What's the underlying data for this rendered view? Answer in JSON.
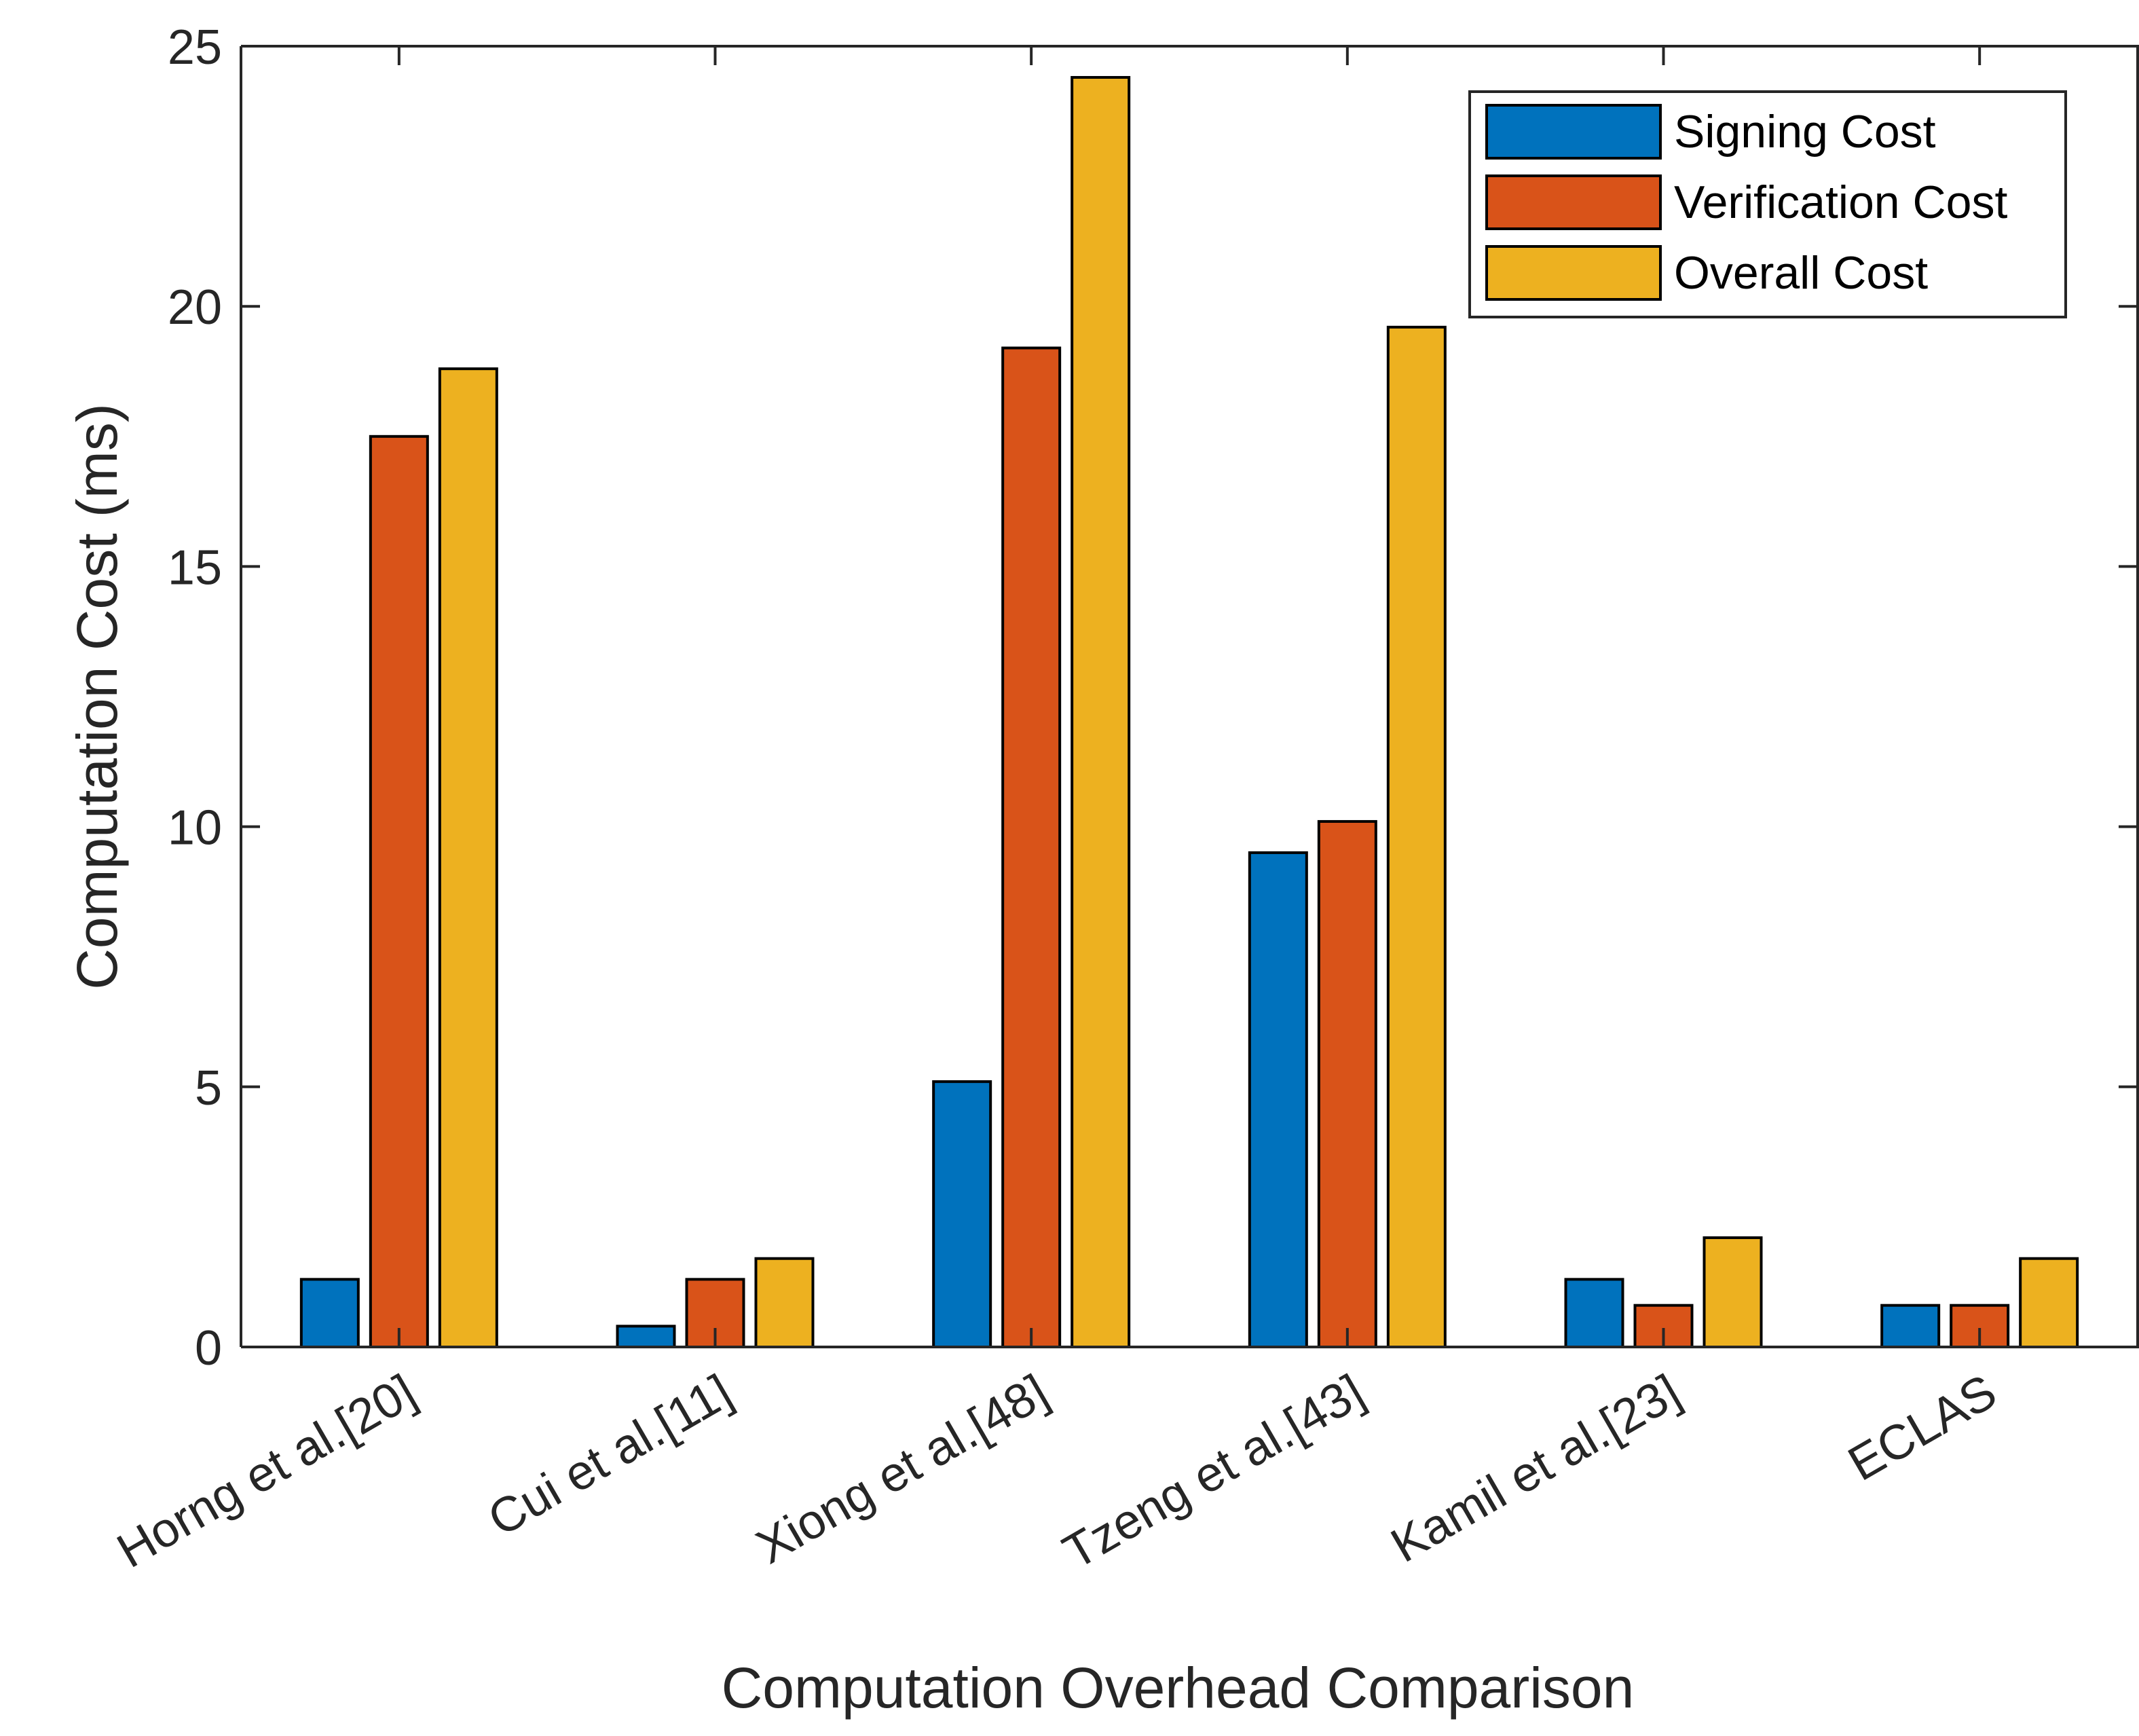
{
  "chart_data": {
    "type": "bar",
    "title": "",
    "xlabel": "Computation Overhead Comparison",
    "ylabel": "Computation Cost (ms)",
    "ylim": [
      0,
      25
    ],
    "yticks": [
      "0",
      "5",
      "10",
      "15",
      "20",
      "25"
    ],
    "categories": [
      "Horng et al.[20]",
      "Cui et al.[11]",
      "Xiong et al.[48]",
      "Tzeng et al.[43]",
      "Kamil et al.[23]",
      "ECLAS"
    ],
    "series": [
      {
        "name": "Signing Cost",
        "color": "#0072BD",
        "values": [
          1.3,
          0.4,
          5.1,
          9.5,
          1.3,
          0.8
        ]
      },
      {
        "name": "Verification Cost",
        "color": "#D95319",
        "values": [
          17.5,
          1.3,
          19.2,
          10.1,
          0.8,
          0.8
        ]
      },
      {
        "name": "Overall Cost",
        "color": "#EDB120",
        "values": [
          18.8,
          1.7,
          24.4,
          19.6,
          2.1,
          1.7
        ]
      }
    ],
    "legend_position": "top-right",
    "grid": false
  }
}
